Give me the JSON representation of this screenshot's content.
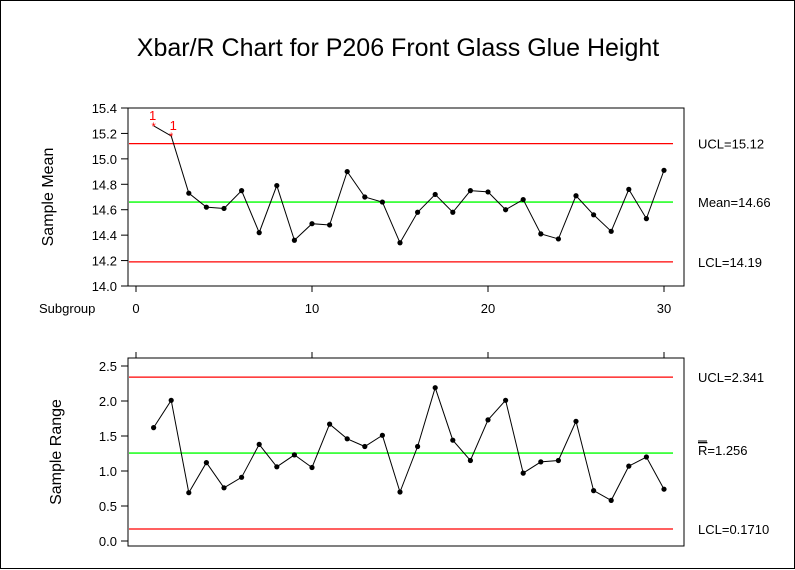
{
  "chart_data": [
    {
      "type": "line",
      "title": "Xbar/R Chart for P206 Front Glass Glue Height",
      "ylabel": "Sample Mean",
      "xlabel": "Subgroup",
      "x_ticks": [
        0,
        10,
        20,
        30
      ],
      "ylim": [
        14.0,
        15.4
      ],
      "y_ticks": [
        "14.0",
        "14.2",
        "14.4",
        "14.6",
        "14.8",
        "15.0",
        "15.2",
        "15.4"
      ],
      "x": [
        1,
        2,
        3,
        4,
        5,
        6,
        7,
        8,
        9,
        10,
        11,
        12,
        13,
        14,
        15,
        16,
        17,
        18,
        19,
        20,
        21,
        22,
        23,
        24,
        25,
        26,
        27,
        28,
        29,
        30
      ],
      "values": [
        15.26,
        15.18,
        14.73,
        14.62,
        14.61,
        14.75,
        14.42,
        14.79,
        14.36,
        14.49,
        14.48,
        14.9,
        14.7,
        14.66,
        14.34,
        14.58,
        14.72,
        14.58,
        14.75,
        14.74,
        14.6,
        14.68,
        14.41,
        14.37,
        14.71,
        14.56,
        14.43,
        14.76,
        14.53,
        14.91
      ],
      "out_of_control_flags": [
        {
          "x": 1,
          "label": "1"
        },
        {
          "x": 2,
          "label": "1"
        }
      ],
      "control_lines": {
        "ucl": {
          "value": 15.12,
          "label": "UCL=15.12",
          "color": "#ff0000"
        },
        "center": {
          "value": 14.66,
          "label": "Mean=14.66",
          "color": "#00ff00"
        },
        "lcl": {
          "value": 14.19,
          "label": "LCL=14.19",
          "color": "#ff0000"
        }
      },
      "grid": false
    },
    {
      "type": "line",
      "ylabel": "Sample Range",
      "ylim": [
        0.0,
        2.5
      ],
      "y_ticks": [
        "0.0",
        "0.5",
        "1.0",
        "1.5",
        "2.0",
        "2.5"
      ],
      "x": [
        1,
        2,
        3,
        4,
        5,
        6,
        7,
        8,
        9,
        10,
        11,
        12,
        13,
        14,
        15,
        16,
        17,
        18,
        19,
        20,
        21,
        22,
        23,
        24,
        25,
        26,
        27,
        28,
        29,
        30
      ],
      "values": [
        1.62,
        2.01,
        0.69,
        1.12,
        0.76,
        0.91,
        1.38,
        1.06,
        1.23,
        1.05,
        1.67,
        1.46,
        1.35,
        1.51,
        0.7,
        1.35,
        2.19,
        1.44,
        1.15,
        1.73,
        2.01,
        0.97,
        1.13,
        1.15,
        1.71,
        0.72,
        0.58,
        1.07,
        1.2,
        0.74
      ],
      "control_lines": {
        "ucl": {
          "value": 2.341,
          "label": "UCL=2.341",
          "color": "#ff0000"
        },
        "center": {
          "value": 1.256,
          "label": "R=1.256",
          "bar_letter": "R",
          "value_text": "=1.256",
          "color": "#00ff00"
        },
        "lcl": {
          "value": 0.171,
          "label": "LCL=0.1710",
          "color": "#ff0000"
        }
      },
      "grid": false
    }
  ]
}
